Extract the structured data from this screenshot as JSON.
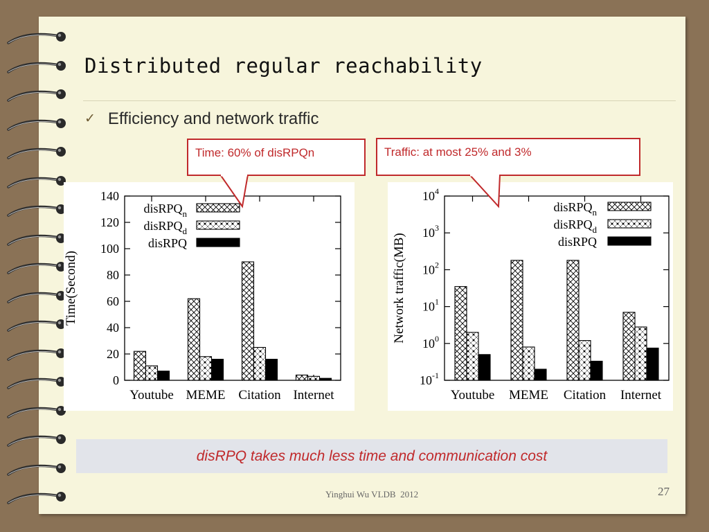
{
  "slide": {
    "title": "Distributed regular reachability",
    "bullet": "Efficiency and network traffic",
    "callout_time": "Time: 60% of disRPQn",
    "callout_traffic": "Traffic: at most 25% and 3%",
    "conclusion": "disRPQ takes much less time and communication cost",
    "footer": "Yinghui Wu VLDB  2012",
    "page_number": "27"
  },
  "colors": {
    "accent": "#c0292b",
    "paper": "#f7f5dc",
    "board": "#8a7256"
  },
  "chart_data": [
    {
      "type": "bar",
      "ylabel": "Time(Second)",
      "categories": [
        "Youtube",
        "MEME",
        "Citation",
        "Internet"
      ],
      "ylim": [
        0,
        140
      ],
      "yticks": [
        "0",
        "20",
        "40",
        "60",
        "80",
        "100",
        "120",
        "140"
      ],
      "legend_position": "top-left",
      "series": [
        {
          "name": "disRPQ",
          "sub": "n",
          "pattern": "cross",
          "values": [
            22,
            62,
            90,
            4
          ]
        },
        {
          "name": "disRPQ",
          "sub": "d",
          "pattern": "dots",
          "values": [
            11,
            18,
            25,
            3
          ]
        },
        {
          "name": "disRPQ",
          "sub": "",
          "pattern": "solid",
          "values": [
            7,
            16,
            16,
            1.5
          ]
        }
      ]
    },
    {
      "type": "bar",
      "ylabel": "Network traffic(MB)",
      "categories": [
        "Youtube",
        "MEME",
        "Citation",
        "Internet"
      ],
      "yscale": "log",
      "ylim": [
        0.1,
        10000
      ],
      "yticks": [
        {
          "base": "10",
          "exp": "-1"
        },
        {
          "base": "10",
          "exp": "0"
        },
        {
          "base": "10",
          "exp": "1"
        },
        {
          "base": "10",
          "exp": "2"
        },
        {
          "base": "10",
          "exp": "3"
        },
        {
          "base": "10",
          "exp": "4"
        }
      ],
      "legend_position": "top-right",
      "series": [
        {
          "name": "disRPQ",
          "sub": "n",
          "pattern": "cross",
          "values": [
            35,
            180,
            180,
            7
          ]
        },
        {
          "name": "disRPQ",
          "sub": "d",
          "pattern": "dots",
          "values": [
            2,
            0.8,
            1.2,
            2.8
          ]
        },
        {
          "name": "disRPQ",
          "sub": "",
          "pattern": "solid",
          "values": [
            0.5,
            0.2,
            0.33,
            0.75
          ]
        }
      ]
    }
  ]
}
